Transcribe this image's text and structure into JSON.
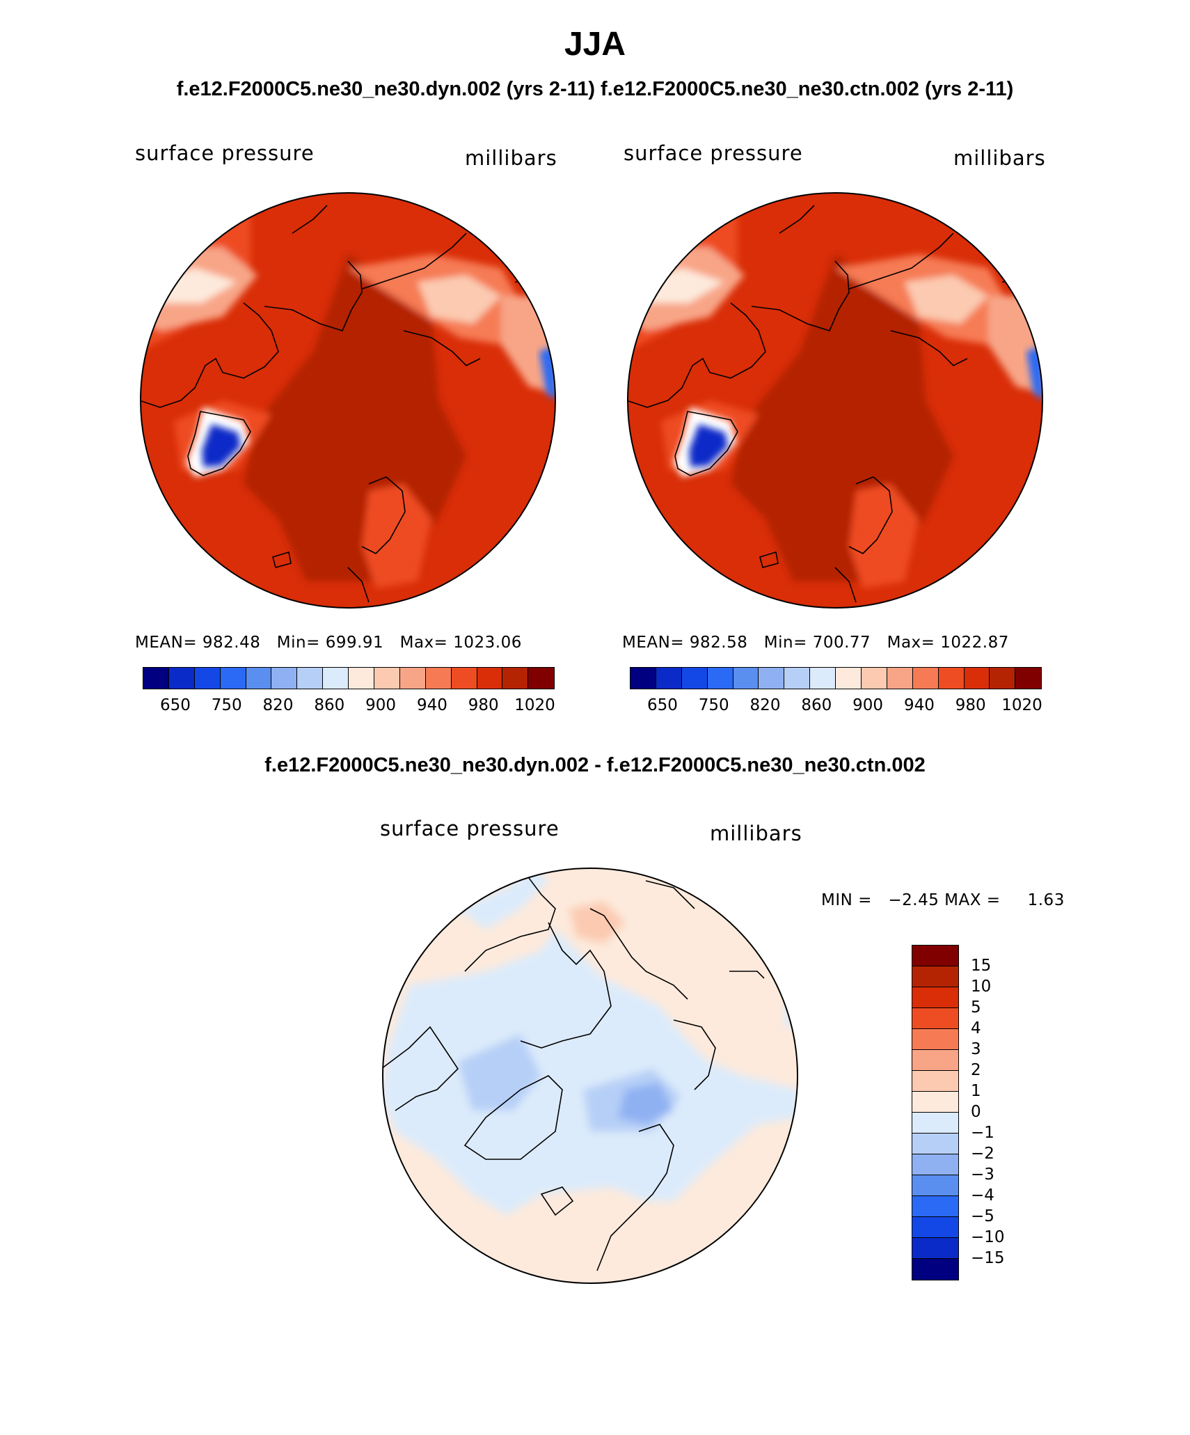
{
  "title": "JJA",
  "subtitle": "f.e12.F2000C5.ne30_ne30.dyn.002 (yrs 2-11)  f.e12.F2000C5.ne30_ne30.ctn.002 (yrs 2-11)",
  "diff_title": "f.e12.F2000C5.ne30_ne30.dyn.002 - f.e12.F2000C5.ne30_ne30.ctn.002",
  "colors": {
    "scale": [
      "#000080",
      "#0a2bc8",
      "#1448e6",
      "#2a6af4",
      "#5a8ff0",
      "#8fb1f2",
      "#b6cff7",
      "#dcebfb",
      "#fdeadc",
      "#fbcab1",
      "#f8a587",
      "#f67b55",
      "#ee4c22",
      "#d92e08",
      "#b42403",
      "#800000"
    ],
    "land": "#000000"
  },
  "panels": [
    {
      "variable": "surface pressure",
      "units": "millibars",
      "stats": "MEAN= 982.48   Min= 699.91   Max= 1023.06",
      "colorbar_ticks": [
        "650",
        "750",
        "820",
        "860",
        "900",
        "940",
        "980",
        "1020"
      ]
    },
    {
      "variable": "surface pressure",
      "units": "millibars",
      "stats": "MEAN= 982.58   Min= 700.77   Max= 1022.87",
      "colorbar_ticks": [
        "650",
        "750",
        "820",
        "860",
        "900",
        "940",
        "980",
        "1020"
      ]
    }
  ],
  "diff": {
    "variable": "surface pressure",
    "units": "millibars",
    "stats": "MIN =   −2.45 MAX =     1.63",
    "colorbar_ticks": [
      "15",
      "10",
      "5",
      "4",
      "3",
      "2",
      "1",
      "0",
      "−1",
      "−2",
      "−3",
      "−4",
      "−5",
      "−10",
      "−15"
    ]
  }
}
